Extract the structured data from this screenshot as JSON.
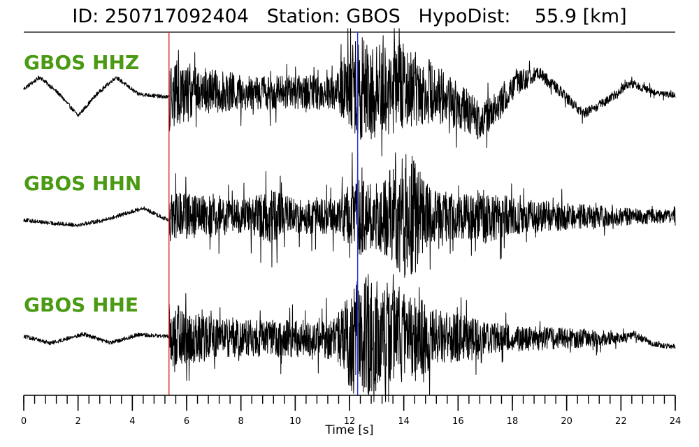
{
  "chart_data": {
    "type": "line",
    "title": {
      "id_label": "ID:",
      "id_value": "250717092404",
      "station_label": "Station:",
      "station_value": "GBOS",
      "hypodist_label": "HypoDist:",
      "hypodist_value": "55.9",
      "hypodist_unit": "[km]"
    },
    "xlabel": "Time [s]",
    "xlim": [
      0,
      24
    ],
    "x_major_ticks": [
      0,
      2,
      4,
      6,
      8,
      10,
      12,
      14,
      16,
      18,
      20,
      22,
      24
    ],
    "x_minor_tick_step": 0.4,
    "grid": false,
    "picks": [
      {
        "phase": "P",
        "time": 5.35,
        "color": "#e8262a"
      },
      {
        "phase": "S",
        "time": 12.3,
        "color": "#2233dd"
      }
    ],
    "trace_color": "#000000",
    "label_color": "#4a9a14",
    "series": [
      {
        "name": "GBOS HHZ",
        "noise_start": 5.35,
        "long_period_wave": [
          [
            0,
            0.1
          ],
          [
            0.6,
            0.45
          ],
          [
            1.3,
            -0.05
          ],
          [
            2.0,
            -0.7
          ],
          [
            2.7,
            -0.05
          ],
          [
            3.4,
            0.45
          ],
          [
            4.2,
            -0.05
          ],
          [
            5.3,
            -0.15
          ],
          [
            6.5,
            0.05
          ],
          [
            8,
            0.0
          ],
          [
            10,
            0.0
          ],
          [
            11.5,
            0.0
          ],
          [
            12.3,
            0.2
          ],
          [
            13.2,
            0.0
          ],
          [
            14,
            0.2
          ],
          [
            15.2,
            0.0
          ],
          [
            16.2,
            -0.5
          ],
          [
            16.8,
            -0.85
          ],
          [
            17.5,
            -0.4
          ],
          [
            18.2,
            0.3
          ],
          [
            19,
            0.55
          ],
          [
            19.8,
            0.0
          ],
          [
            20.6,
            -0.65
          ],
          [
            21.4,
            -0.3
          ],
          [
            22.3,
            0.25
          ],
          [
            23.3,
            0.0
          ],
          [
            24,
            -0.1
          ]
        ],
        "noise_envelope": [
          [
            5.35,
            1.25
          ],
          [
            6,
            0.85
          ],
          [
            8,
            0.6
          ],
          [
            10,
            0.55
          ],
          [
            11.5,
            0.6
          ],
          [
            12.3,
            2.0
          ],
          [
            13,
            1.6
          ],
          [
            14,
            1.4
          ],
          [
            15,
            1.05
          ],
          [
            16,
            0.8
          ],
          [
            17,
            0.6
          ],
          [
            18,
            0.45
          ],
          [
            19,
            0.22
          ],
          [
            20,
            0.18
          ],
          [
            22,
            0.14
          ],
          [
            24,
            0.1
          ]
        ]
      },
      {
        "name": "GBOS HHN",
        "noise_start": 5.35,
        "long_period_wave": [
          [
            0,
            -0.1
          ],
          [
            1.0,
            -0.2
          ],
          [
            2.0,
            -0.25
          ],
          [
            3.0,
            -0.1
          ],
          [
            3.8,
            0.1
          ],
          [
            4.4,
            0.25
          ],
          [
            5.3,
            -0.1
          ],
          [
            6,
            0.0
          ],
          [
            24,
            0.0
          ]
        ],
        "noise_envelope": [
          [
            5.35,
            0.85
          ],
          [
            6,
            0.75
          ],
          [
            8,
            0.55
          ],
          [
            9.2,
            0.9
          ],
          [
            10,
            0.55
          ],
          [
            11.5,
            0.6
          ],
          [
            12.3,
            1.3
          ],
          [
            13,
            1.1
          ],
          [
            14.2,
            2.2
          ],
          [
            15,
            1.0
          ],
          [
            16,
            0.7
          ],
          [
            17,
            0.95
          ],
          [
            18,
            0.6
          ],
          [
            20,
            0.45
          ],
          [
            22,
            0.3
          ],
          [
            24,
            0.2
          ]
        ]
      },
      {
        "name": "GBOS HHE",
        "noise_start": 5.35,
        "long_period_wave": [
          [
            0,
            0.05
          ],
          [
            1.0,
            -0.15
          ],
          [
            2.2,
            0.12
          ],
          [
            3.2,
            -0.15
          ],
          [
            4.2,
            0.1
          ],
          [
            5.3,
            0.05
          ],
          [
            6,
            0.0
          ],
          [
            22,
            0.0
          ],
          [
            22.5,
            0.1
          ],
          [
            23.2,
            -0.2
          ],
          [
            24,
            -0.25
          ]
        ],
        "noise_envelope": [
          [
            5.35,
            1.0
          ],
          [
            6,
            0.85
          ],
          [
            8,
            0.6
          ],
          [
            10,
            0.65
          ],
          [
            11.5,
            0.7
          ],
          [
            12.3,
            2.2
          ],
          [
            13,
            1.9
          ],
          [
            14.2,
            1.7
          ],
          [
            15,
            1.05
          ],
          [
            16,
            0.8
          ],
          [
            17,
            0.55
          ],
          [
            18,
            0.45
          ],
          [
            19,
            0.4
          ],
          [
            21,
            0.3
          ],
          [
            22,
            0.15
          ],
          [
            24,
            0.08
          ]
        ]
      }
    ]
  }
}
